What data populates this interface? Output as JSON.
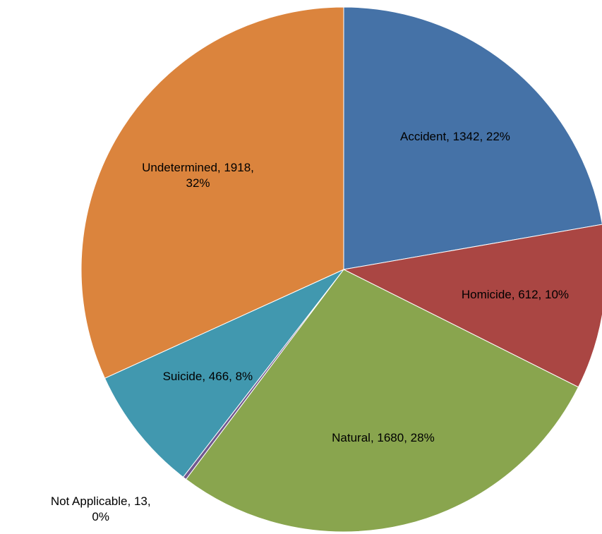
{
  "chart_data": {
    "type": "pie",
    "categories": [
      "Accident",
      "Homicide",
      "Natural",
      "Not Applicable",
      "Suicide",
      "Undetermined"
    ],
    "values": [
      1342,
      612,
      1680,
      13,
      466,
      1918
    ],
    "value_labels": [
      "Accident, 1342, 22%",
      "Homicide, 612, 10%",
      "Natural, 1680, 28%",
      "Not Applicable, 13, 0%",
      "Suicide, 466, 8%",
      "Undetermined, 1918, 32%"
    ],
    "colors": [
      "#4572a7",
      "#aa4643",
      "#89a54e",
      "#71588f",
      "#4198af",
      "#db843d"
    ]
  }
}
